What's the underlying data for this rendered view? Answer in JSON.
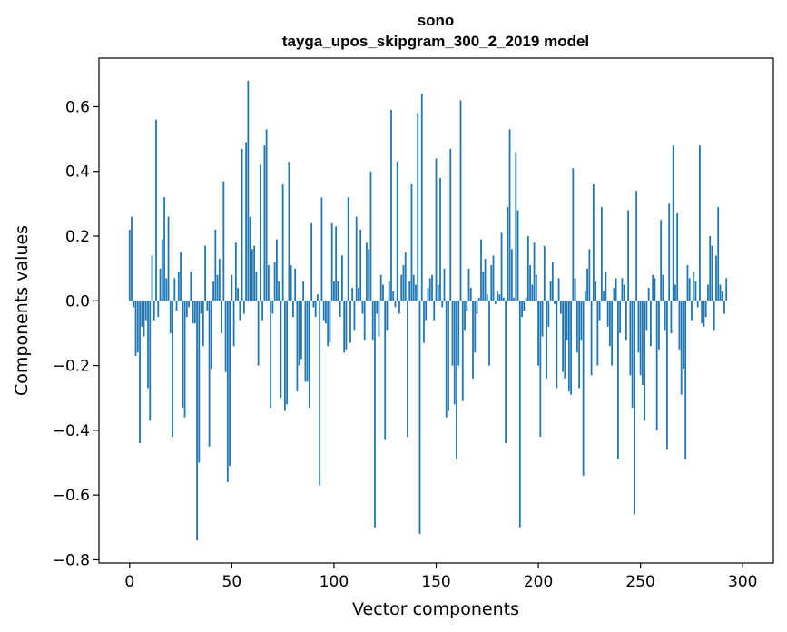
{
  "chart_data": {
    "type": "bar",
    "title": "sono",
    "subtitle": "tayga_upos_skipgram_300_2_2019 model",
    "xlabel": "Vector components",
    "ylabel": "Components values",
    "xlim": [
      -15,
      315
    ],
    "ylim": [
      -0.81,
      0.75
    ],
    "xticks": [
      0,
      50,
      100,
      150,
      200,
      250,
      300
    ],
    "xtick_labels": [
      "0",
      "50",
      "100",
      "150",
      "200",
      "250",
      "300"
    ],
    "yticks": [
      0.6,
      0.4,
      0.2,
      0.0,
      -0.2,
      -0.4,
      -0.6,
      -0.8
    ],
    "ytick_labels": [
      "0.6",
      "0.4",
      "0.2",
      "0.0",
      "−0.2",
      "−0.4",
      "−0.6",
      "−0.8"
    ],
    "color": "#1f77b4",
    "x": "0..299",
    "values": [
      0.22,
      0.26,
      -0.02,
      -0.17,
      -0.16,
      -0.44,
      -0.08,
      -0.11,
      -0.06,
      -0.27,
      -0.37,
      0.14,
      -0.06,
      0.56,
      -0.05,
      0.1,
      0.19,
      0.32,
      0.07,
      0.26,
      -0.1,
      -0.42,
      0.07,
      -0.03,
      0.09,
      0.15,
      -0.33,
      -0.36,
      -0.05,
      -0.02,
      0.09,
      -0.07,
      -0.07,
      -0.74,
      -0.5,
      -0.04,
      -0.14,
      0.17,
      -0.03,
      -0.45,
      -0.21,
      0.06,
      0.22,
      0.08,
      0.13,
      -0.1,
      0.37,
      -0.22,
      -0.56,
      -0.51,
      0.08,
      -0.14,
      0.18,
      0.04,
      -0.06,
      0.47,
      -0.04,
      0.49,
      0.68,
      0.26,
      0.16,
      0.17,
      0.09,
      -0.2,
      0.42,
      -0.06,
      0.48,
      0.53,
      0.11,
      -0.33,
      -0.04,
      0.12,
      0.19,
      0.06,
      -0.3,
      0.36,
      -0.34,
      -0.32,
      0.43,
      0.11,
      -0.05,
      0.1,
      -0.28,
      -0.2,
      -0.18,
      0.06,
      -0.25,
      -0.25,
      -0.33,
      0.24,
      -0.02,
      -0.05,
      0.02,
      -0.57,
      0.32,
      -0.06,
      -0.07,
      -0.14,
      -0.13,
      0.24,
      0.06,
      0.23,
      0.06,
      -0.05,
      0.14,
      -0.16,
      -0.15,
      0.32,
      -0.13,
      0.04,
      -0.09,
      0.26,
      0.04,
      0.22,
      -0.04,
      -0.12,
      0.18,
      0.16,
      0.4,
      -0.12,
      -0.7,
      -0.04,
      -0.11,
      0.08,
      0.05,
      -0.43,
      -0.09,
      0.06,
      0.59,
      0.03,
      -0.02,
      0.43,
      -0.04,
      0.08,
      0.11,
      0.15,
      -0.42,
      0.06,
      0.36,
      0.08,
      0.05,
      0.58,
      -0.72,
      0.64,
      -0.13,
      -0.06,
      0.04,
      0.07,
      0.08,
      -0.06,
      0.44,
      0.05,
      0.38,
      -0.02,
      0.1,
      -0.36,
      -0.34,
      0.47,
      -0.2,
      -0.32,
      -0.49,
      -0.2,
      0.62,
      -0.31,
      -0.09,
      -0.03,
      0.1,
      0.04,
      -0.24,
      -0.16,
      -0.04,
      0.01,
      0.19,
      0.09,
      0.13,
      0.02,
      -0.2,
      0.11,
      0.14,
      -0.01,
      0.03,
      0.02,
      0.21,
      0.01,
      -0.44,
      0.29,
      0.53,
      0.16,
      0.01,
      0.46,
      0.28,
      -0.7,
      -0.05,
      -0.03,
      0.01,
      0.2,
      0.11,
      0.05,
      0.18,
      0.08,
      -0.2,
      -0.42,
      -0.11,
      0.17,
      -0.24,
      -0.08,
      0.06,
      0.12,
      -0.01,
      -0.27,
      0.07,
      -0.04,
      -0.22,
      -0.24,
      -0.12,
      -0.28,
      -0.29,
      0.41,
      0.07,
      -0.16,
      -0.27,
      -0.12,
      -0.54,
      0.03,
      0.1,
      0.16,
      -0.23,
      0.36,
      0.06,
      -0.2,
      -0.06,
      0.29,
      0.03,
      0.09,
      -0.08,
      -0.14,
      -0.2,
      0.04,
      0.07,
      -0.49,
      -0.1,
      0.07,
      0.05,
      -0.12,
      0.28,
      -0.23,
      -0.33,
      -0.66,
      0.34,
      -0.16,
      -0.23,
      -0.26,
      -0.37,
      -0.09,
      0.04,
      -0.14,
      0.08,
      0.07,
      -0.4,
      -0.15,
      0.25,
      0.08,
      -0.09,
      -0.46,
      0.3,
      -0.1,
      0.48,
      0.05,
      0.27,
      -0.15,
      -0.29,
      -0.21,
      -0.49,
      0.11,
      0.07,
      -0.06,
      0.09,
      0.06,
      -0.02,
      0.48,
      -0.07,
      -0.08,
      -0.05,
      0.05,
      0.2,
      0.17,
      -0.09,
      0.14,
      0.29,
      0.05,
      0.03,
      -0.04,
      0.07
    ]
  }
}
